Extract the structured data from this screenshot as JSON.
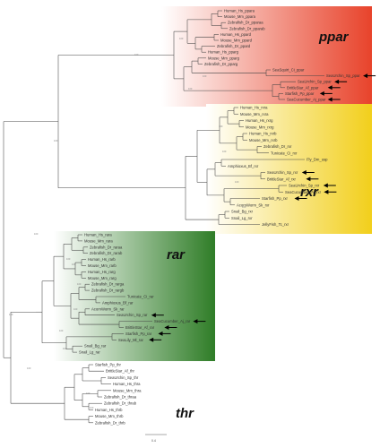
{
  "groups": [
    {
      "key": "ppar",
      "label": "ppar",
      "color_dark": "#e8432b",
      "color_light": "#ffffff"
    },
    {
      "key": "rxr",
      "label": "rxr",
      "color_dark": "#f2cf1b",
      "color_light": "#ffffff"
    },
    {
      "key": "rar",
      "label": "rar",
      "color_dark": "#2f7d27",
      "color_light": "#ffffff"
    },
    {
      "key": "thr",
      "label": "thr",
      "color_dark": "",
      "color_light": ""
    }
  ],
  "leaves": {
    "ppar": [
      "Human_Hs_ppara",
      "Mouse_Mm_ppara",
      "Zebrafish_Dr_pparaa",
      "Zebrafish_Dr_pparab",
      "Human_Hs_ppard",
      "Mouse_Mm_ppard",
      "Zebrafish_Dr_ppard",
      "Human_Hs_pparg",
      "Mouse_Mm_pparg",
      "Zebrafish_Dr_pparg",
      "SeaSquirt_Ci_ppar",
      "SeaUrchin_Sp_ppar",
      "SeaUrchin_Sp_ppar",
      "BrittleStar_Af_ppar",
      "Starfish_Pp_ppar",
      "SeaCucumber_Aj_ppar"
    ],
    "rxr": [
      "Human_Hs_rxra",
      "Mouse_Mm_rxra",
      "Human_Hs_rxrg",
      "Mouse_Mm_rxrg",
      "Human_Hs_rxrb",
      "Mouse_Mm_rxrb",
      "Zebrafish_Dr_rxr",
      "Tunicate_Ci_rxr",
      "Fly_Dm_usp",
      "Amphioxus_Bf_rxr",
      "SeaUrchin_Sp_rxr",
      "BrittleStar_Af_rxr",
      "SeaUrchin_Sp_rxr",
      "SeaCucumber_Aj_rxr",
      "Starfish_Pp_rxr",
      "AcornWorm_Sk_rxr",
      "Snail_Bg_rxr",
      "Snail_Lg_rxr",
      "JellyFish_Tc_rxr"
    ],
    "rar": [
      "Human_Hs_rara",
      "Mouse_Mm_rara",
      "Zebrafish_Dr_raraa",
      "Zebrafish_Dr_rarab",
      "Human_Hs_rarb",
      "Mouse_Mm_rarb",
      "Human_Hs_rarg",
      "Mouse_Mm_rarg",
      "Zebrafish_Dr_rarga",
      "Zebrafish_Dr_rargb",
      "Tunicate_Ci_rar",
      "Amphioxus_Bf_rar",
      "AcornWorm_Sk_rar",
      "SeaUrchin_Sp_rar",
      "SeaCucumber_Aj_rar",
      "BrittleStar_Af_rar",
      "Starfish_Pp_rar",
      "SeaLily_Ml_rar",
      "Snail_Bg_rar",
      "Snail_Lg_rar"
    ],
    "thr": [
      "Starfish_Pp_thr",
      "BrittleStar_Af_thr",
      "SeaUrchin_Sp_thr",
      "Human_Hs_thra",
      "Mouse_Mm_thra",
      "Zebrafish_Dr_thraa",
      "Zebrafish_Dr_thrab",
      "Human_Hs_thrb",
      "Mouse_Mm_thrb",
      "Zebrafish_Dr_thrb"
    ]
  },
  "arrowed_leaves": [
    "SeaUrchin_Sp_ppar",
    "SeaUrchin_Sp_ppar",
    "BrittleStar_Af_ppar",
    "Starfish_Pp_ppar",
    "SeaCucumber_Aj_ppar",
    "BrittleStar_Af_rxr",
    "SeaUrchin_Sp_rxr",
    "SeaCucumber_Aj_rxr",
    "Starfish_Pp_rxr",
    "SeaUrchin_Sp_rar",
    "SeaCucumber_Aj_rar",
    "BrittleStar_Af_rar",
    "Starfish_Pp_rar",
    "SeaLily_Ml_rar"
  ],
  "bootstrap_labels": [
    "100",
    "100",
    "100",
    "100",
    "100",
    "100",
    "100",
    "100",
    "100",
    "100",
    "100",
    "100",
    "100",
    "100",
    "100",
    "100",
    "100",
    "100",
    "100",
    "100"
  ],
  "scale_bar": {
    "label": "0.4"
  }
}
